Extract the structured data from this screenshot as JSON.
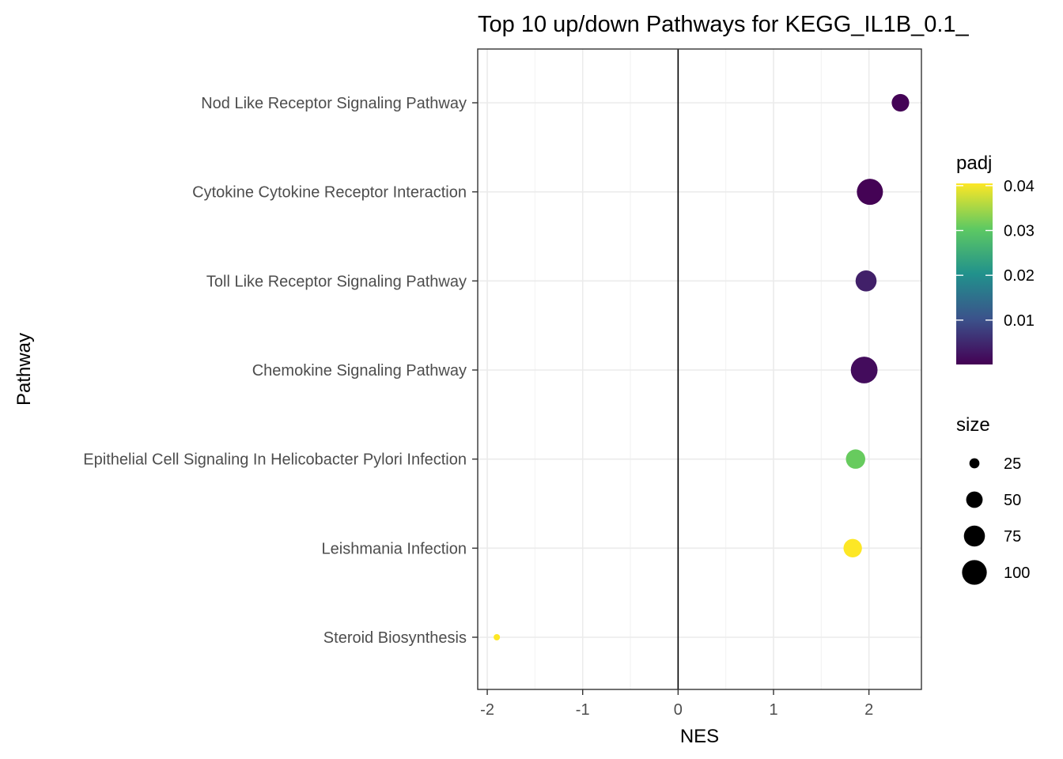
{
  "chart_data": {
    "type": "scatter",
    "title": "Top 10 up/down Pathways for  KEGG_IL1B_0.1_",
    "xlabel": "NES",
    "ylabel": "Pathway",
    "xlim": [
      -2.1,
      2.55
    ],
    "xticks": [
      -2,
      -1,
      0,
      1,
      2
    ],
    "xtick_labels": [
      "-2",
      "-1",
      "0",
      "1",
      "2"
    ],
    "vline_x": 0,
    "grid": true,
    "categories": [
      "Nod Like Receptor Signaling Pathway",
      "Cytokine Cytokine Receptor Interaction",
      "Toll Like Receptor Signaling Pathway",
      "Chemokine Signaling Pathway",
      "Epithelial Cell Signaling In Helicobacter Pylori Infection",
      "Leishmania Infection",
      "Steroid Biosynthesis"
    ],
    "points": [
      {
        "pathway": "Nod Like Receptor Signaling Pathway",
        "nes": 2.33,
        "padj": 0.0005,
        "size": 55
      },
      {
        "pathway": "Cytokine Cytokine Receptor Interaction",
        "nes": 2.01,
        "padj": 0.0003,
        "size": 110
      },
      {
        "pathway": "Toll Like Receptor Signaling Pathway",
        "nes": 1.97,
        "padj": 0.004,
        "size": 75
      },
      {
        "pathway": "Chemokine Signaling Pathway",
        "nes": 1.95,
        "padj": 0.0015,
        "size": 115
      },
      {
        "pathway": "Epithelial Cell Signaling In Helicobacter Pylori Infection",
        "nes": 1.86,
        "padj": 0.031,
        "size": 65
      },
      {
        "pathway": "Leishmania Infection",
        "nes": 1.83,
        "padj": 0.0405,
        "size": 60
      },
      {
        "pathway": "Steroid Biosynthesis",
        "nes": -1.9,
        "padj": 0.0405,
        "size": 16
      }
    ],
    "legend": {
      "placement": "right",
      "color": {
        "title": "padj",
        "range": [
          0.0001,
          0.0405
        ],
        "ticks": [
          0.04,
          0.03,
          0.02,
          0.01
        ],
        "tick_labels": [
          "0.04",
          "0.03",
          "0.02",
          "0.01"
        ],
        "colormap": [
          "#440154",
          "#3b528b",
          "#21918c",
          "#5ec962",
          "#fde725"
        ]
      },
      "size": {
        "title": "size",
        "entries": [
          {
            "label": "25",
            "value": 25
          },
          {
            "label": "50",
            "value": 50
          },
          {
            "label": "75",
            "value": 75
          },
          {
            "label": "100",
            "value": 100
          }
        ]
      }
    }
  }
}
